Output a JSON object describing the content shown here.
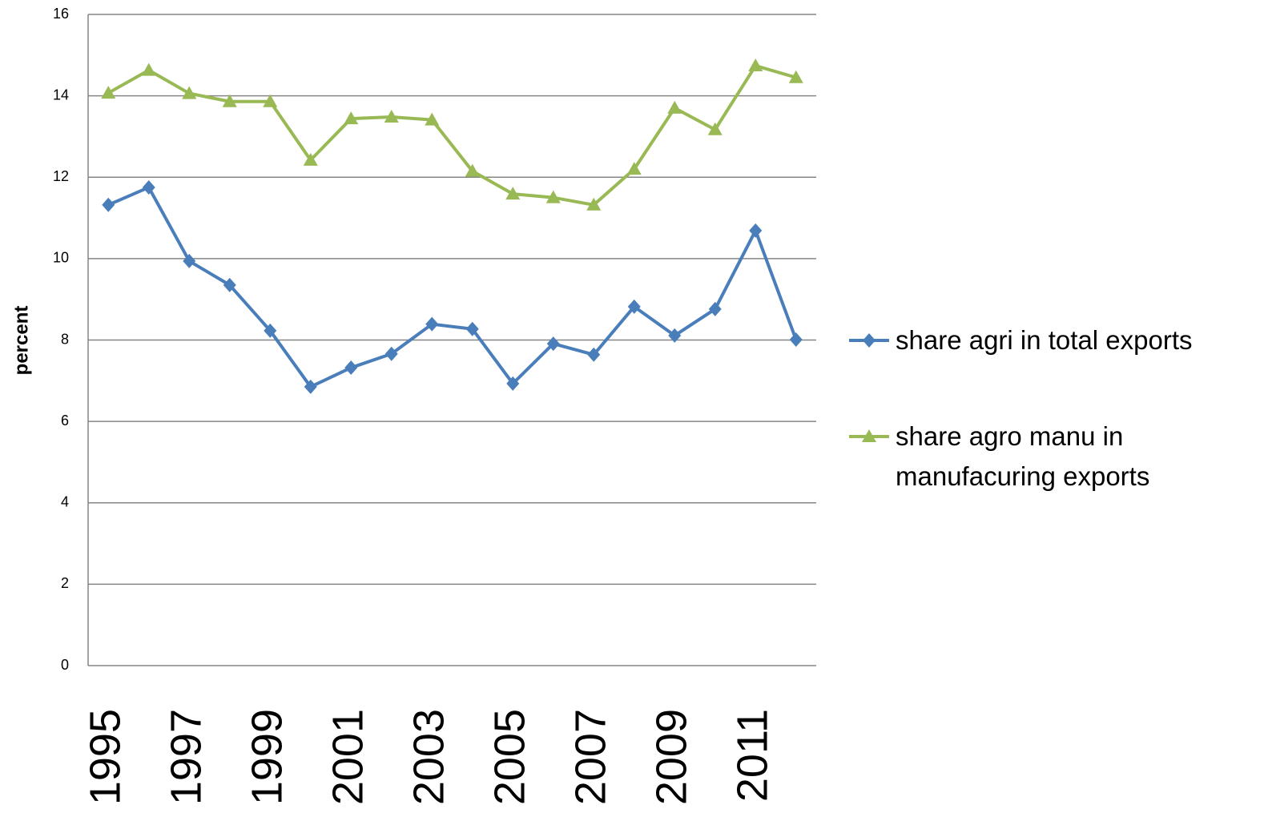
{
  "chart_data": {
    "type": "line",
    "y_label": "percent",
    "categories": [
      "1995",
      null,
      "1997",
      null,
      "1999",
      null,
      "2001",
      null,
      "2003",
      null,
      "2005",
      null,
      "2007",
      null,
      "2009",
      null,
      "2011",
      null
    ],
    "series": [
      {
        "name": "share agri in total exports",
        "color": "#4a7ebb",
        "marker": "diamond",
        "values": [
          11.32,
          11.75,
          9.94,
          9.35,
          8.23,
          6.85,
          7.32,
          7.66,
          8.39,
          8.27,
          6.93,
          7.91,
          7.64,
          8.82,
          8.11,
          8.76,
          10.69,
          8.01
        ]
      },
      {
        "name": "share agro manu in manufacuring exports",
        "color": "#98b954",
        "marker": "triangle",
        "values": [
          14.07,
          14.63,
          14.06,
          13.86,
          13.86,
          12.42,
          13.44,
          13.48,
          13.41,
          12.15,
          11.59,
          11.5,
          11.32,
          12.2,
          13.7,
          13.17,
          14.74,
          14.45
        ]
      }
    ],
    "ylim": [
      0,
      16
    ],
    "yticks": [
      0,
      2,
      4,
      6,
      8,
      10,
      12,
      14,
      16
    ],
    "grid": true,
    "legend": "right"
  }
}
